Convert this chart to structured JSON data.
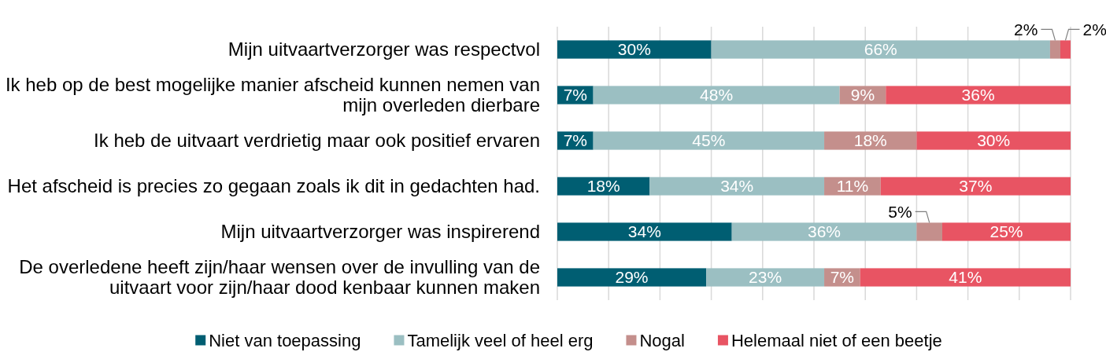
{
  "chart_data": {
    "type": "bar",
    "orientation": "horizontal",
    "stacked": true,
    "categories": [
      "Mijn uitvaartverzorger was respectvol",
      "Ik heb op de best mogelijke manier afscheid kunnen nemen van mijn overleden dierbare",
      "Ik heb de uitvaart verdrietig maar ook positief ervaren",
      "Het afscheid is precies zo gegaan zoals ik dit in gedachten had.",
      "Mijn uitvaartverzorger was inspirerend",
      "De overledene heeft zijn/haar wensen over de invulling van de uitvaart voor zijn/haar dood kenbaar kunnen maken"
    ],
    "series": [
      {
        "name": "Niet van toepassing",
        "color": "#005e72",
        "values": [
          30,
          7,
          7,
          18,
          34,
          29
        ],
        "value_labels": [
          "30%",
          "7%",
          "7%",
          "18%",
          "34%",
          "29%"
        ]
      },
      {
        "name": "Tamelijk veel of heel erg",
        "color": "#9bbfc2",
        "values": [
          66,
          48,
          45,
          34,
          36,
          23
        ],
        "value_labels": [
          "66%",
          "48%",
          "45%",
          "34%",
          "36%",
          "23%"
        ]
      },
      {
        "name": "Nogal",
        "color": "#c48f8c",
        "values": [
          2,
          9,
          18,
          11,
          5,
          7
        ],
        "value_labels": [
          "2%",
          "9%",
          "18%",
          "11%",
          "5%",
          "7%"
        ]
      },
      {
        "name": "Helemaal niet of een beetje",
        "color": "#e85463",
        "values": [
          2,
          36,
          30,
          37,
          25,
          41
        ],
        "value_labels": [
          "2%",
          "36%",
          "30%",
          "37%",
          "25%",
          "41%"
        ]
      }
    ],
    "xlim": [
      0,
      100
    ],
    "xticks": [
      {
        "value": 0,
        "label": null
      },
      {
        "value": 10,
        "label": null
      },
      {
        "value": 20,
        "label": null
      },
      {
        "value": 30,
        "label": null
      },
      {
        "value": 40,
        "label": null
      },
      {
        "value": 50,
        "label": null
      },
      {
        "value": 60,
        "label": null
      },
      {
        "value": 70,
        "label": null
      },
      {
        "value": 80,
        "label": null
      },
      {
        "value": 90,
        "label": null
      },
      {
        "value": 100,
        "label": null
      }
    ],
    "grid": "x",
    "tick_labels": "y",
    "legend": "bottom"
  }
}
